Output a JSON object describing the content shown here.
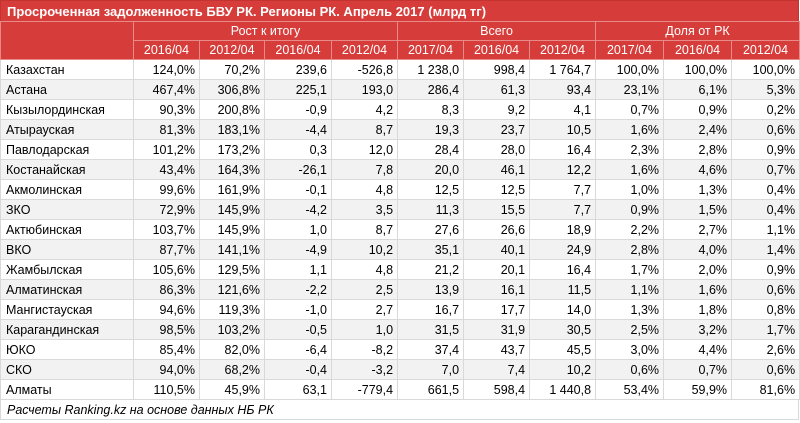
{
  "title": "Просроченная задолженность БВУ РК. Регионы РК. Апрель 2017 (млрд тг)",
  "groups": [
    "Рост к итогу",
    "Всего",
    "Доля от РК"
  ],
  "columns": [
    "2016/04",
    "2012/04",
    "2016/04",
    "2012/04",
    "2017/04",
    "2016/04",
    "2012/04",
    "2017/04",
    "2016/04",
    "2012/04"
  ],
  "rows": [
    {
      "name": "Казахстан",
      "cells": [
        "124,0%",
        "70,2%",
        "239,6",
        "-526,8",
        "1 238,0",
        "998,4",
        "1 764,7",
        "100,0%",
        "100,0%",
        "100,0%"
      ]
    },
    {
      "name": "Астана",
      "cells": [
        "467,4%",
        "306,8%",
        "225,1",
        "193,0",
        "286,4",
        "61,3",
        "93,4",
        "23,1%",
        "6,1%",
        "5,3%"
      ]
    },
    {
      "name": "Кызылординская",
      "cells": [
        "90,3%",
        "200,8%",
        "-0,9",
        "4,2",
        "8,3",
        "9,2",
        "4,1",
        "0,7%",
        "0,9%",
        "0,2%"
      ]
    },
    {
      "name": "Атырауская",
      "cells": [
        "81,3%",
        "183,1%",
        "-4,4",
        "8,7",
        "19,3",
        "23,7",
        "10,5",
        "1,6%",
        "2,4%",
        "0,6%"
      ]
    },
    {
      "name": "Павлодарская",
      "cells": [
        "101,2%",
        "173,2%",
        "0,3",
        "12,0",
        "28,4",
        "28,0",
        "16,4",
        "2,3%",
        "2,8%",
        "0,9%"
      ]
    },
    {
      "name": "Костанайская",
      "cells": [
        "43,4%",
        "164,3%",
        "-26,1",
        "7,8",
        "20,0",
        "46,1",
        "12,2",
        "1,6%",
        "4,6%",
        "0,7%"
      ]
    },
    {
      "name": "Акмолинская",
      "cells": [
        "99,6%",
        "161,9%",
        "-0,1",
        "4,8",
        "12,5",
        "12,5",
        "7,7",
        "1,0%",
        "1,3%",
        "0,4%"
      ]
    },
    {
      "name": "ЗКО",
      "cells": [
        "72,9%",
        "145,9%",
        "-4,2",
        "3,5",
        "11,3",
        "15,5",
        "7,7",
        "0,9%",
        "1,5%",
        "0,4%"
      ]
    },
    {
      "name": "Актюбинская",
      "cells": [
        "103,7%",
        "145,9%",
        "1,0",
        "8,7",
        "27,6",
        "26,6",
        "18,9",
        "2,2%",
        "2,7%",
        "1,1%"
      ]
    },
    {
      "name": "ВКО",
      "cells": [
        "87,7%",
        "141,1%",
        "-4,9",
        "10,2",
        "35,1",
        "40,1",
        "24,9",
        "2,8%",
        "4,0%",
        "1,4%"
      ]
    },
    {
      "name": "Жамбылская",
      "cells": [
        "105,6%",
        "129,5%",
        "1,1",
        "4,8",
        "21,2",
        "20,1",
        "16,4",
        "1,7%",
        "2,0%",
        "0,9%"
      ]
    },
    {
      "name": "Алматинская",
      "cells": [
        "86,3%",
        "121,6%",
        "-2,2",
        "2,5",
        "13,9",
        "16,1",
        "11,5",
        "1,1%",
        "1,6%",
        "0,6%"
      ]
    },
    {
      "name": "Мангистауская",
      "cells": [
        "94,6%",
        "119,3%",
        "-1,0",
        "2,7",
        "16,7",
        "17,7",
        "14,0",
        "1,3%",
        "1,8%",
        "0,8%"
      ]
    },
    {
      "name": "Карагандинская",
      "cells": [
        "98,5%",
        "103,2%",
        "-0,5",
        "1,0",
        "31,5",
        "31,9",
        "30,5",
        "2,5%",
        "3,2%",
        "1,7%"
      ]
    },
    {
      "name": "ЮКО",
      "cells": [
        "85,4%",
        "82,0%",
        "-6,4",
        "-8,2",
        "37,4",
        "43,7",
        "45,5",
        "3,0%",
        "4,4%",
        "2,6%"
      ]
    },
    {
      "name": "СКО",
      "cells": [
        "94,0%",
        "68,2%",
        "-0,4",
        "-3,2",
        "7,0",
        "7,4",
        "10,2",
        "0,6%",
        "0,7%",
        "0,6%"
      ]
    },
    {
      "name": "Алматы",
      "cells": [
        "110,5%",
        "45,9%",
        "63,1",
        "-779,4",
        "661,5",
        "598,4",
        "1 440,8",
        "53,4%",
        "59,9%",
        "81,6%"
      ]
    }
  ],
  "footer": "Расчеты Ranking.kz на основе данных НБ РК",
  "colors": {
    "header_bg": "#d63c3a",
    "header_text": "#ffffff",
    "stripe": "#f2f2f2"
  }
}
